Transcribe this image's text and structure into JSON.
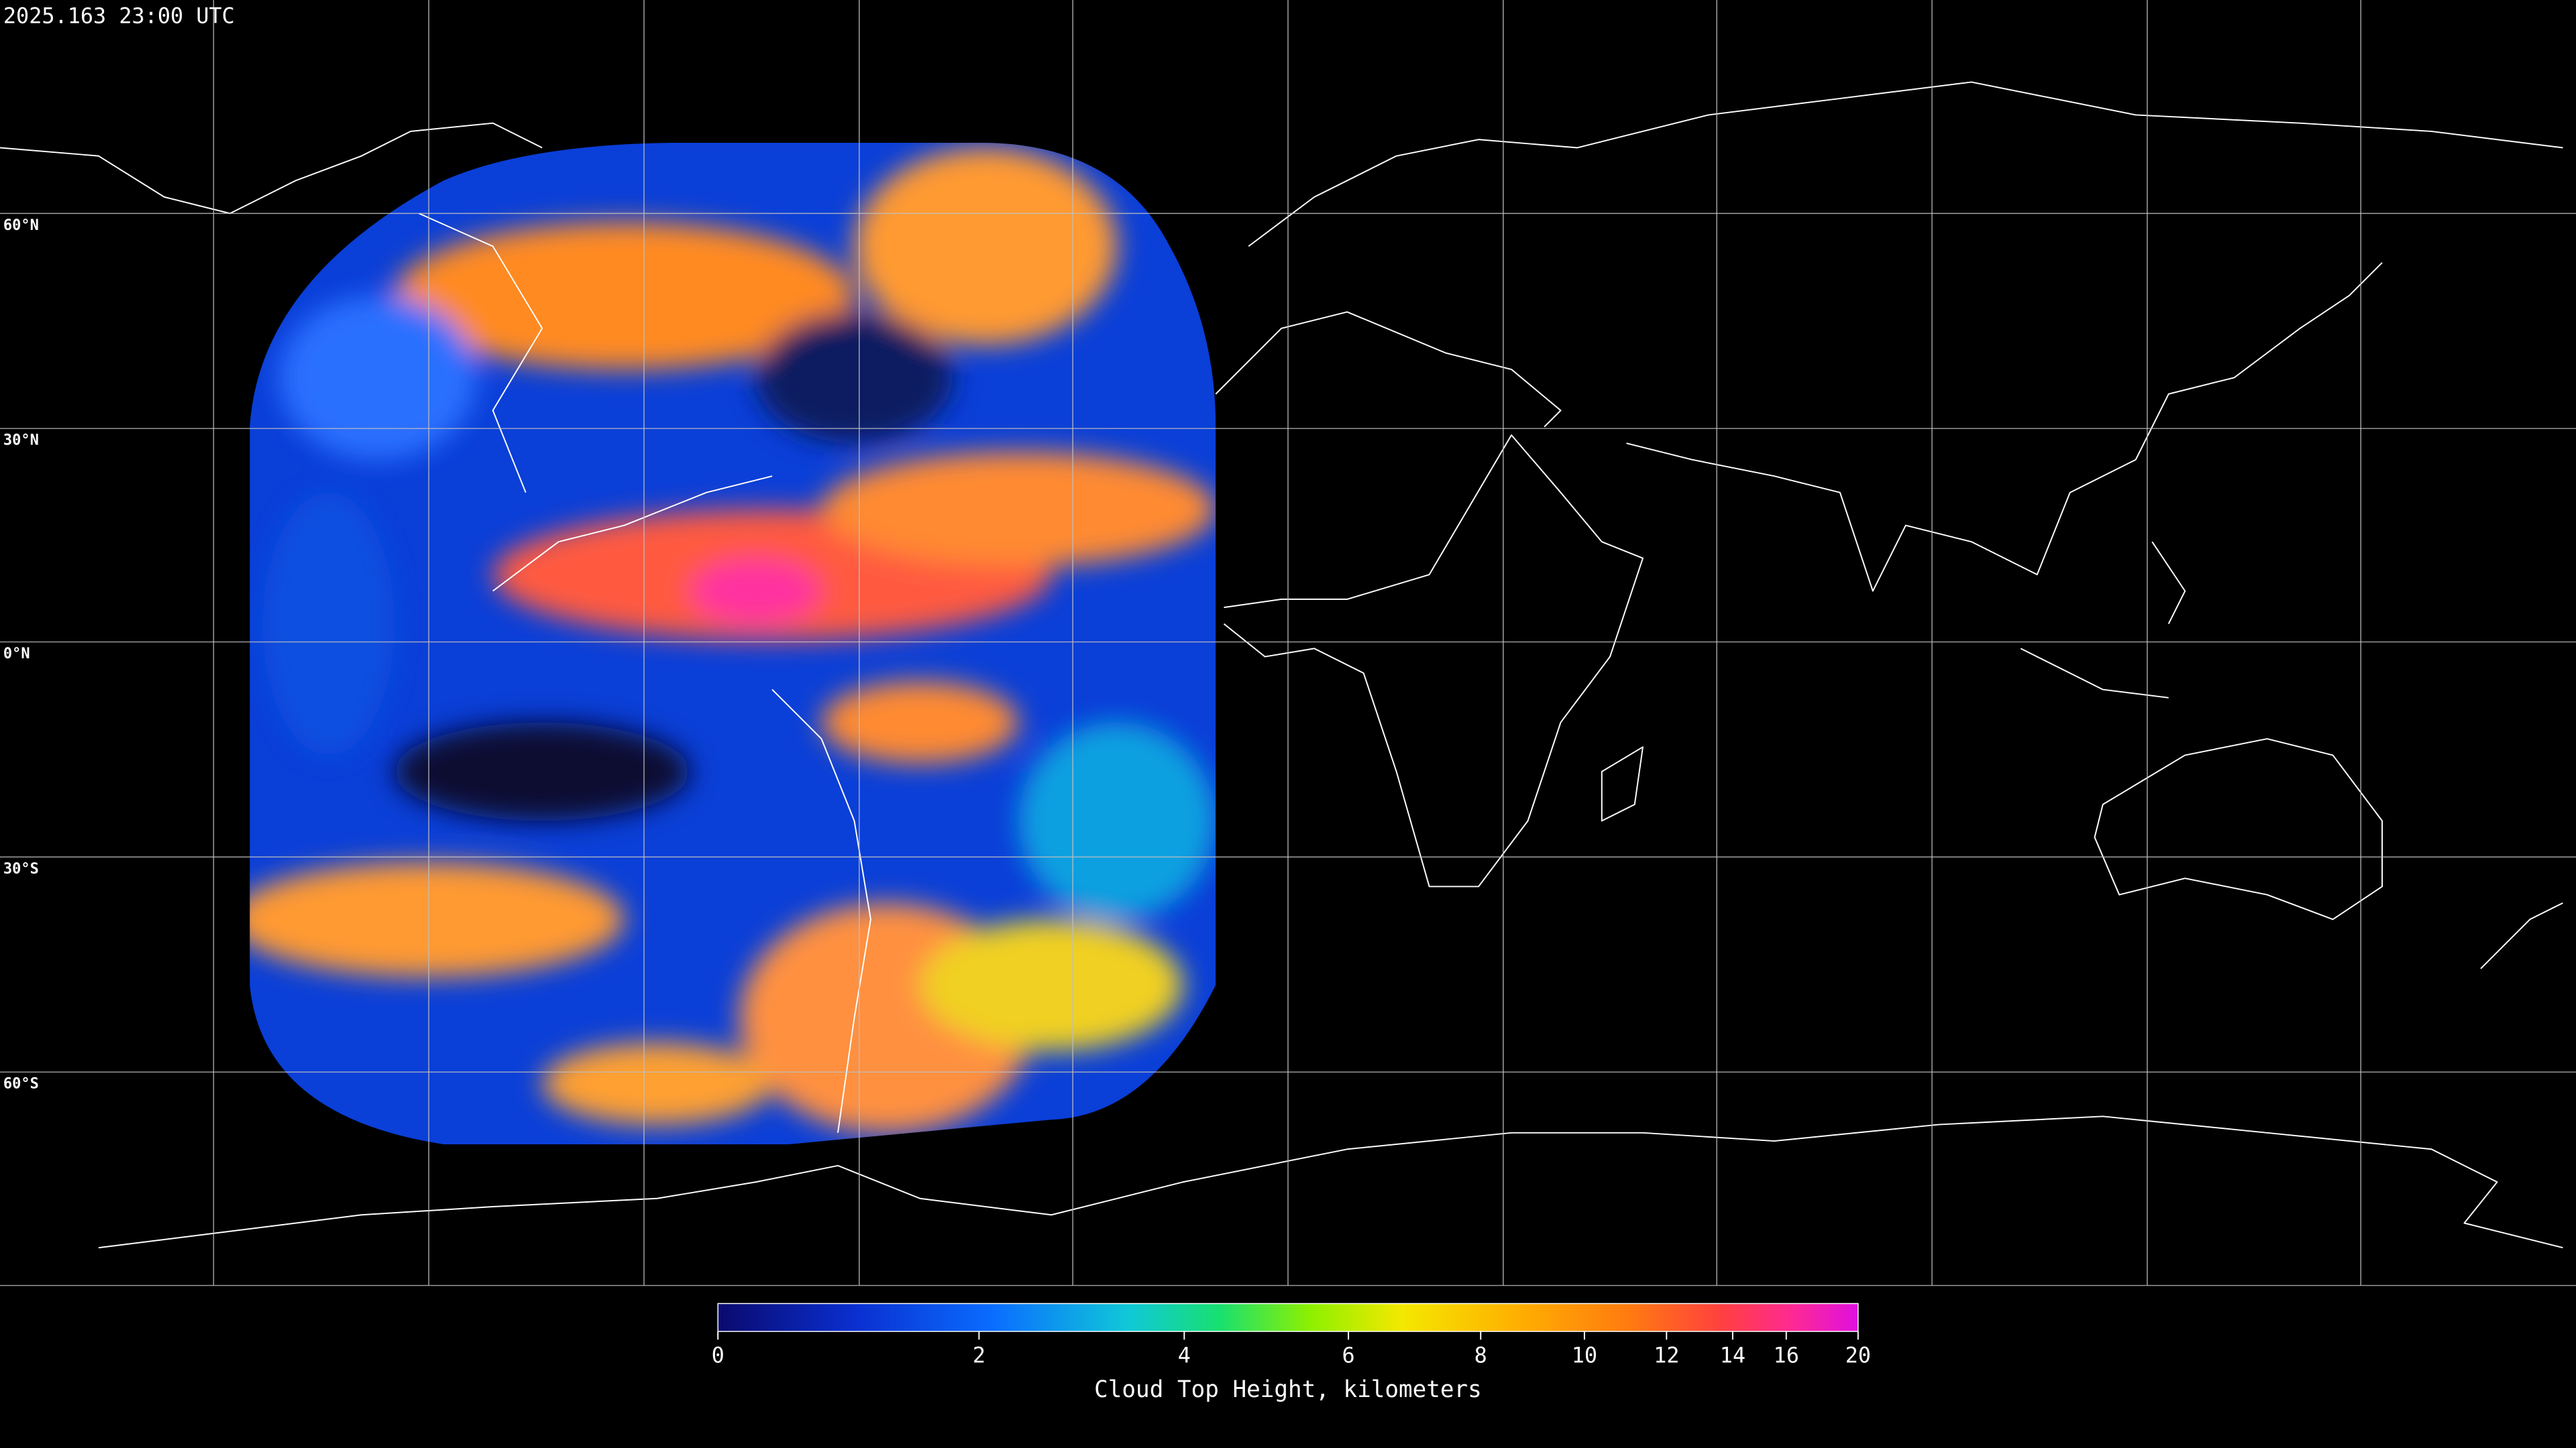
{
  "timestamp": "2025.163 23:00 UTC",
  "latitude_labels": [
    "60°N",
    "30°N",
    "0°N",
    "30°S",
    "60°S"
  ],
  "colorbar": {
    "ticks": [
      0,
      2,
      4,
      6,
      8,
      10,
      12,
      14,
      16,
      20
    ],
    "label": "Cloud Top Height, kilometers"
  }
}
